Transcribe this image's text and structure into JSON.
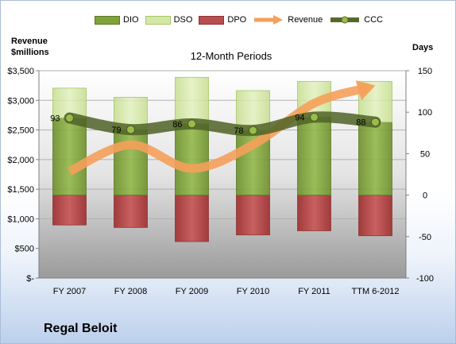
{
  "company": "Regal Beloit",
  "legend": {
    "dio": "DIO",
    "dso": "DSO",
    "dpo": "DPO",
    "revenue": "Revenue",
    "ccc": "CCC"
  },
  "left_axis_title": [
    "Revenue",
    "$millions"
  ],
  "right_axis_title": "Days",
  "chart_data": {
    "type": "bar",
    "title": "12-Month Periods",
    "categories": [
      "FY 2007",
      "FY 2008",
      "FY 2009",
      "FY 2010",
      "FY 2011",
      "TTM 6-2012"
    ],
    "y_left": {
      "label": "Revenue $millions",
      "lim": [
        0,
        3500
      ],
      "ticks": [
        0,
        500,
        1000,
        1500,
        2000,
        2500,
        3000,
        3500
      ],
      "tick_labels": [
        "$-",
        "$500",
        "$1,000",
        "$1,500",
        "$2,000",
        "$2,500",
        "$3,000",
        "$3,500"
      ]
    },
    "y_right": {
      "label": "Days",
      "lim": [
        -100,
        150
      ],
      "ticks": [
        -100,
        -50,
        0,
        50,
        100,
        150
      ],
      "tick_labels": [
        "-100",
        "-50",
        "0",
        "50",
        "100",
        "150"
      ]
    },
    "series": [
      {
        "name": "DIO",
        "kind": "stacked-bar",
        "axis": "right",
        "color": "#7fa23a",
        "values": [
          93,
          79,
          86,
          78,
          94,
          88
        ]
      },
      {
        "name": "DSO",
        "kind": "stacked-bar",
        "axis": "right",
        "color": "#d4e8a6",
        "values": [
          36,
          39,
          56,
          48,
          43,
          49
        ]
      },
      {
        "name": "DPO",
        "kind": "negative-bar",
        "axis": "right",
        "color": "#b84e4e",
        "values": [
          -36,
          -39,
          -56,
          -48,
          -43,
          -49
        ]
      },
      {
        "name": "Revenue",
        "kind": "line-arrow",
        "axis": "left",
        "color": "#f5a05a",
        "values": [
          1800,
          2250,
          1850,
          2250,
          2950,
          3250
        ]
      },
      {
        "name": "CCC",
        "kind": "line-markers",
        "axis": "right",
        "color": "#56692a",
        "values": [
          93,
          79,
          86,
          78,
          94,
          88
        ]
      }
    ],
    "data_labels": [
      "93",
      "79",
      "86",
      "78",
      "94",
      "88"
    ],
    "grid": true
  }
}
